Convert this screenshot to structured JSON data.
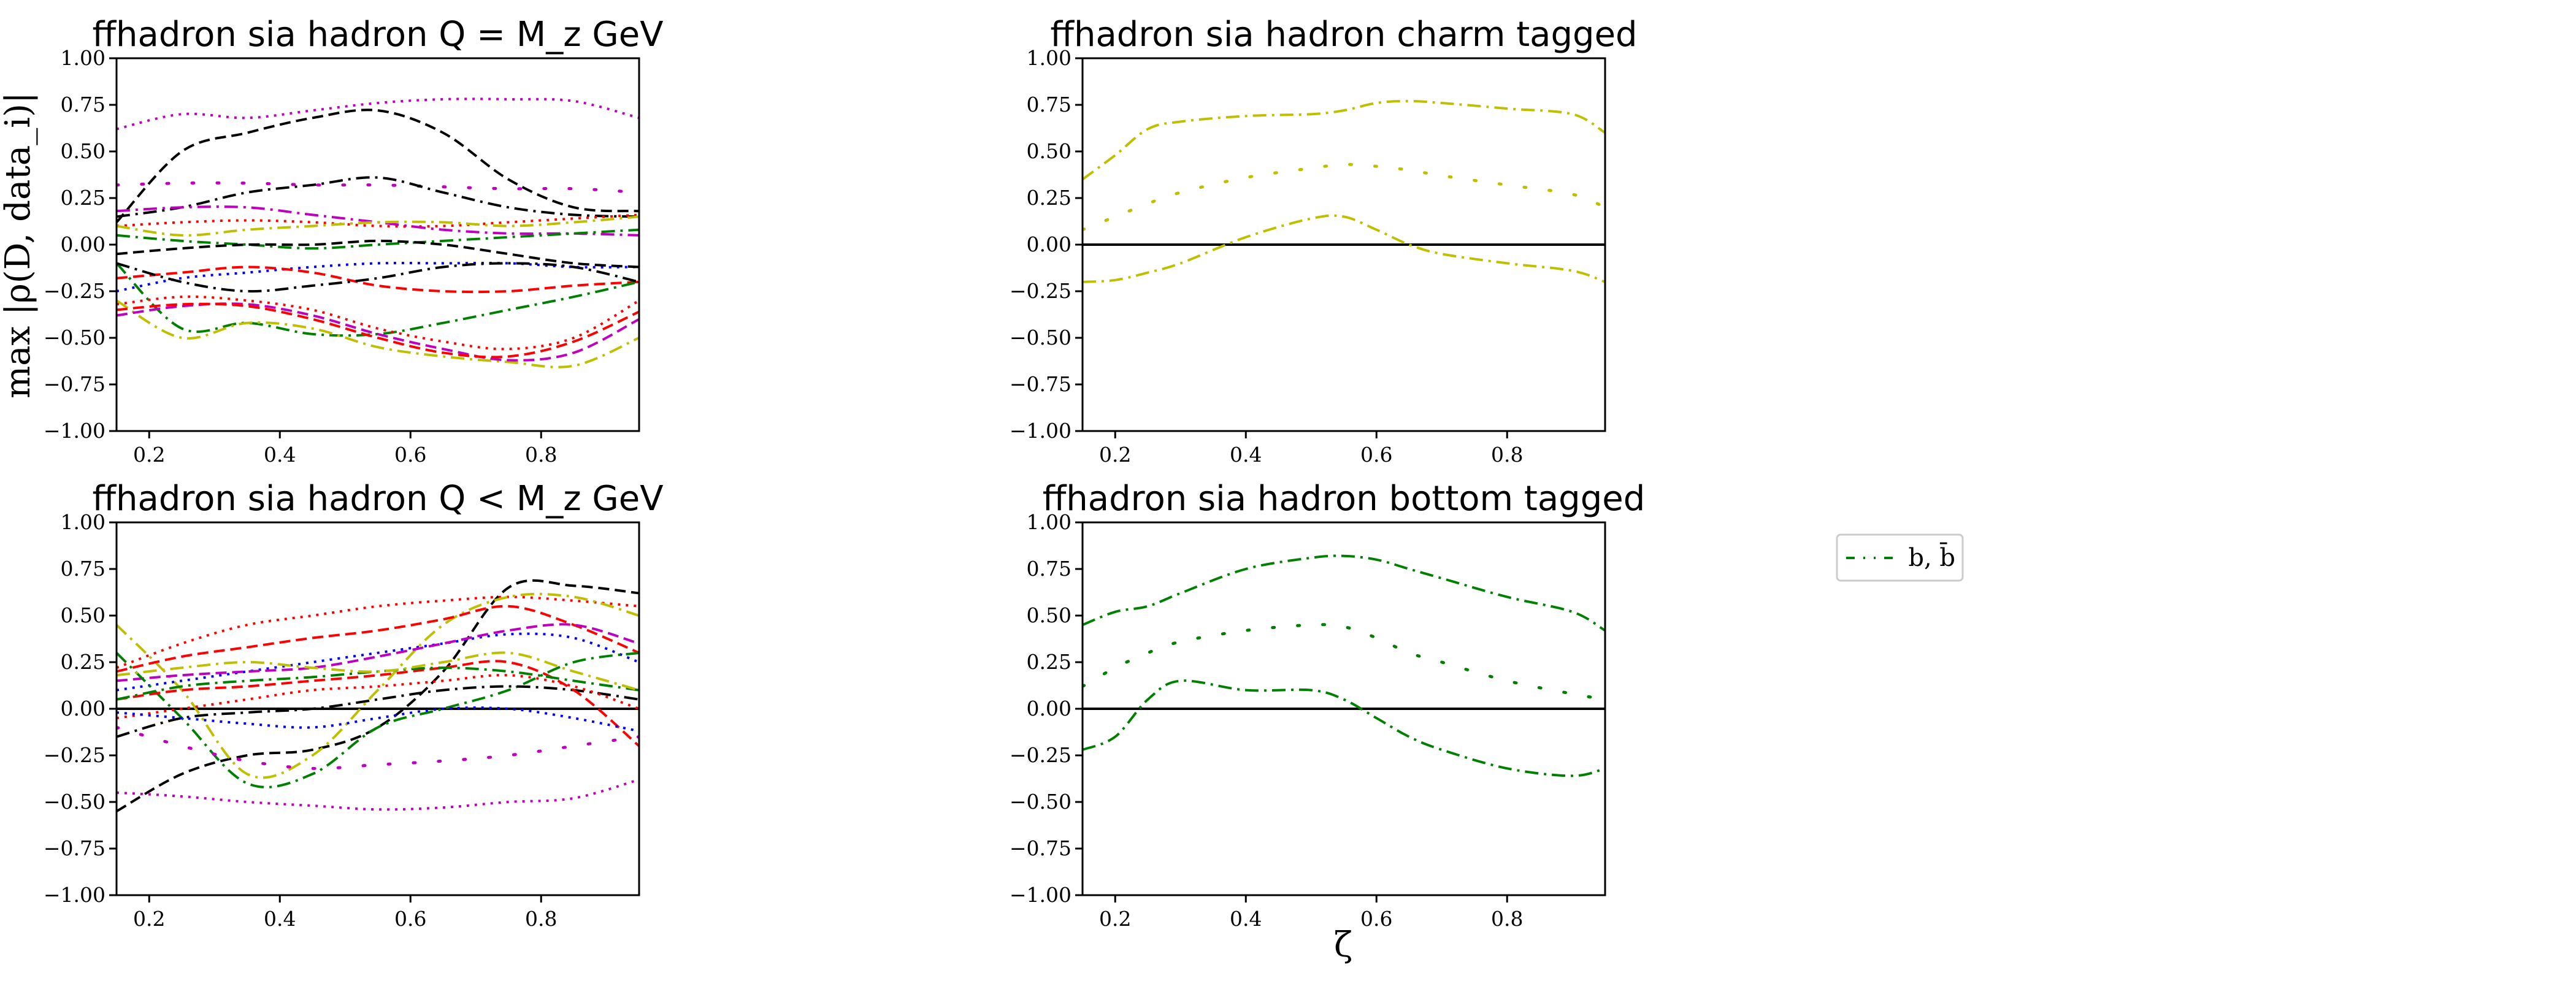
{
  "figure": {
    "ylabel": "max |ρ(D, data_i)|",
    "xlabel": "ζ",
    "legend": {
      "label": "b, b̄",
      "color": "#008000",
      "linestyle": "dashdot-sparse",
      "placement": "right-middle"
    }
  },
  "chart_data": [
    {
      "type": "line",
      "title": "ffhadron sia hadron Q = M_z GeV",
      "xlim": [
        0.15,
        0.95
      ],
      "ylim": [
        -1.0,
        1.0
      ],
      "xticks": [
        "0.2",
        "0.4",
        "0.6",
        "0.8"
      ],
      "yticks": [
        "−1.00",
        "−0.75",
        "−0.50",
        "−0.25",
        "0.00",
        "0.25",
        "0.50",
        "0.75",
        "1.00"
      ],
      "zero_line": false,
      "x": [
        0.15,
        0.25,
        0.35,
        0.45,
        0.55,
        0.65,
        0.75,
        0.85,
        0.95
      ],
      "series": [
        {
          "color": "#000000",
          "dash": "dashed",
          "values": [
            0.12,
            0.5,
            0.6,
            0.68,
            0.72,
            0.6,
            0.35,
            0.2,
            0.18
          ]
        },
        {
          "color": "#bf00bf",
          "dash": "dotted",
          "values": [
            0.62,
            0.7,
            0.68,
            0.72,
            0.76,
            0.78,
            0.78,
            0.77,
            0.68
          ]
        },
        {
          "color": "#bf00bf",
          "dash": "sparse",
          "values": [
            0.32,
            0.33,
            0.33,
            0.32,
            0.32,
            0.31,
            0.3,
            0.3,
            0.28
          ]
        },
        {
          "color": "#000000",
          "dash": "dashdot",
          "values": [
            0.15,
            0.2,
            0.28,
            0.32,
            0.36,
            0.28,
            0.2,
            0.16,
            0.15
          ]
        },
        {
          "color": "#ff0000",
          "dash": "dotted",
          "values": [
            0.1,
            0.12,
            0.13,
            0.12,
            0.1,
            0.1,
            0.12,
            0.14,
            0.16
          ]
        },
        {
          "color": "#bf00bf",
          "dash": "dashdot",
          "values": [
            0.18,
            0.2,
            0.2,
            0.16,
            0.12,
            0.08,
            0.06,
            0.06,
            0.05
          ]
        },
        {
          "color": "#bfbf00",
          "dash": "dashdot",
          "values": [
            0.1,
            0.05,
            0.08,
            0.1,
            0.12,
            0.12,
            0.1,
            0.12,
            0.15
          ]
        },
        {
          "color": "#008000",
          "dash": "dashdot",
          "values": [
            0.05,
            0.02,
            0.0,
            -0.02,
            0.0,
            0.02,
            0.04,
            0.06,
            0.08
          ]
        },
        {
          "color": "#0000ff",
          "dash": "dotted",
          "values": [
            -0.25,
            -0.18,
            -0.15,
            -0.12,
            -0.1,
            -0.1,
            -0.1,
            -0.12,
            -0.12
          ]
        },
        {
          "color": "#ff0000",
          "dash": "dashed",
          "values": [
            -0.18,
            -0.15,
            -0.12,
            -0.15,
            -0.22,
            -0.25,
            -0.25,
            -0.22,
            -0.2
          ]
        },
        {
          "color": "#000000",
          "dash": "dashed",
          "values": [
            -0.05,
            -0.02,
            0.0,
            0.0,
            0.02,
            0.0,
            -0.05,
            -0.1,
            -0.12
          ]
        },
        {
          "color": "#008000",
          "dash": "dashdot",
          "values": [
            -0.1,
            -0.45,
            -0.42,
            -0.48,
            -0.48,
            -0.42,
            -0.35,
            -0.28,
            -0.2
          ]
        },
        {
          "color": "#bfbf00",
          "dash": "dashdot",
          "values": [
            -0.3,
            -0.5,
            -0.42,
            -0.45,
            -0.55,
            -0.6,
            -0.63,
            -0.65,
            -0.5
          ]
        },
        {
          "color": "#bf00bf",
          "dash": "dashed",
          "values": [
            -0.38,
            -0.33,
            -0.32,
            -0.38,
            -0.48,
            -0.56,
            -0.62,
            -0.58,
            -0.4
          ]
        },
        {
          "color": "#ff0000",
          "dash": "dashed",
          "values": [
            -0.35,
            -0.32,
            -0.33,
            -0.4,
            -0.5,
            -0.58,
            -0.6,
            -0.52,
            -0.36
          ]
        },
        {
          "color": "#ff0000",
          "dash": "dotted",
          "values": [
            -0.32,
            -0.28,
            -0.3,
            -0.35,
            -0.45,
            -0.52,
            -0.56,
            -0.5,
            -0.3
          ]
        },
        {
          "color": "#000000",
          "dash": "dashdot",
          "values": [
            -0.1,
            -0.2,
            -0.25,
            -0.22,
            -0.18,
            -0.12,
            -0.1,
            -0.12,
            -0.2
          ]
        }
      ]
    },
    {
      "type": "line",
      "title": "ffhadron sia hadron charm tagged",
      "xlim": [
        0.15,
        0.95
      ],
      "ylim": [
        -1.0,
        1.0
      ],
      "xticks": [
        "0.2",
        "0.4",
        "0.6",
        "0.8"
      ],
      "yticks": [
        "−1.00",
        "−0.75",
        "−0.50",
        "−0.25",
        "0.00",
        "0.25",
        "0.50",
        "0.75",
        "1.00"
      ],
      "zero_line": true,
      "x": [
        0.15,
        0.2,
        0.25,
        0.3,
        0.4,
        0.5,
        0.55,
        0.6,
        0.65,
        0.7,
        0.8,
        0.9,
        0.95
      ],
      "series": [
        {
          "color": "#bfbf00",
          "dash": "dashdot",
          "values": [
            0.35,
            0.48,
            0.62,
            0.66,
            0.69,
            0.7,
            0.72,
            0.76,
            0.77,
            0.76,
            0.73,
            0.7,
            0.6
          ]
        },
        {
          "color": "#bfbf00",
          "dash": "sparse",
          "values": [
            0.08,
            0.15,
            0.22,
            0.28,
            0.36,
            0.41,
            0.43,
            0.42,
            0.4,
            0.37,
            0.32,
            0.27,
            0.2
          ]
        },
        {
          "color": "#bfbf00",
          "dash": "dashdot",
          "values": [
            -0.2,
            -0.19,
            -0.15,
            -0.1,
            0.04,
            0.14,
            0.15,
            0.08,
            0.0,
            -0.05,
            -0.1,
            -0.14,
            -0.2
          ]
        }
      ]
    },
    {
      "type": "line",
      "title": "ffhadron sia hadron Q < M_z GeV",
      "xlim": [
        0.15,
        0.95
      ],
      "ylim": [
        -1.0,
        1.0
      ],
      "xticks": [
        "0.2",
        "0.4",
        "0.6",
        "0.8"
      ],
      "yticks": [
        "−1.00",
        "−0.75",
        "−0.50",
        "−0.25",
        "0.00",
        "0.25",
        "0.50",
        "0.75",
        "1.00"
      ],
      "zero_line": true,
      "x": [
        0.15,
        0.25,
        0.35,
        0.45,
        0.55,
        0.65,
        0.75,
        0.85,
        0.95
      ],
      "series": [
        {
          "color": "#000000",
          "dash": "dashed",
          "values": [
            -0.55,
            -0.35,
            -0.25,
            -0.22,
            -0.1,
            0.2,
            0.65,
            0.66,
            0.62
          ]
        },
        {
          "color": "#ff0000",
          "dash": "dotted",
          "values": [
            0.22,
            0.35,
            0.45,
            0.5,
            0.55,
            0.58,
            0.6,
            0.58,
            0.55
          ]
        },
        {
          "color": "#bfbf00",
          "dash": "dashdot",
          "values": [
            0.45,
            0.1,
            -0.35,
            -0.25,
            0.1,
            0.45,
            0.6,
            0.6,
            0.5
          ]
        },
        {
          "color": "#ff0000",
          "dash": "dashed",
          "values": [
            0.2,
            0.28,
            0.33,
            0.38,
            0.42,
            0.48,
            0.55,
            0.45,
            0.3
          ]
        },
        {
          "color": "#0000ff",
          "dash": "dotted",
          "values": [
            0.1,
            0.15,
            0.2,
            0.25,
            0.3,
            0.35,
            0.4,
            0.38,
            0.25
          ]
        },
        {
          "color": "#bf00bf",
          "dash": "dashed",
          "values": [
            0.15,
            0.18,
            0.2,
            0.22,
            0.28,
            0.35,
            0.42,
            0.45,
            0.35
          ]
        },
        {
          "color": "#008000",
          "dash": "dashdot",
          "values": [
            0.3,
            -0.05,
            -0.4,
            -0.35,
            -0.1,
            0.0,
            0.1,
            0.25,
            0.3
          ]
        },
        {
          "color": "#bf00bf",
          "dash": "dotted",
          "values": [
            -0.45,
            -0.47,
            -0.5,
            -0.52,
            -0.54,
            -0.53,
            -0.5,
            -0.48,
            -0.38
          ]
        },
        {
          "color": "#bf00bf",
          "dash": "sparse",
          "values": [
            -0.1,
            -0.2,
            -0.28,
            -0.32,
            -0.3,
            -0.28,
            -0.25,
            -0.2,
            -0.15
          ]
        },
        {
          "color": "#000000",
          "dash": "dashdot",
          "values": [
            -0.15,
            -0.05,
            -0.02,
            0.0,
            0.05,
            0.1,
            0.12,
            0.1,
            0.05
          ]
        },
        {
          "color": "#ff0000",
          "dash": "dashed",
          "values": [
            0.05,
            0.1,
            0.12,
            0.15,
            0.18,
            0.22,
            0.25,
            0.1,
            -0.2
          ]
        },
        {
          "color": "#008000",
          "dash": "dashdot",
          "values": [
            0.05,
            0.12,
            0.15,
            0.17,
            0.2,
            0.22,
            0.2,
            0.15,
            0.1
          ]
        },
        {
          "color": "#ff0000",
          "dash": "dotted",
          "values": [
            -0.05,
            0.0,
            0.05,
            0.1,
            0.12,
            0.15,
            0.18,
            0.12,
            0.0
          ]
        },
        {
          "color": "#bfbf00",
          "dash": "dashdot",
          "values": [
            0.18,
            0.22,
            0.25,
            0.22,
            0.2,
            0.25,
            0.3,
            0.2,
            0.1
          ]
        },
        {
          "color": "#0000ff",
          "dash": "dotted",
          "values": [
            -0.02,
            -0.05,
            -0.08,
            -0.1,
            -0.05,
            0.0,
            0.0,
            -0.05,
            -0.12
          ]
        }
      ]
    },
    {
      "type": "line",
      "title": "ffhadron sia hadron bottom tagged",
      "xlim": [
        0.15,
        0.95
      ],
      "ylim": [
        -1.0,
        1.0
      ],
      "xticks": [
        "0.2",
        "0.4",
        "0.6",
        "0.8"
      ],
      "yticks": [
        "−1.00",
        "−0.75",
        "−0.50",
        "−0.25",
        "0.00",
        "0.25",
        "0.50",
        "0.75",
        "1.00"
      ],
      "zero_line": true,
      "x": [
        0.15,
        0.2,
        0.25,
        0.3,
        0.4,
        0.5,
        0.55,
        0.6,
        0.65,
        0.7,
        0.8,
        0.9,
        0.95
      ],
      "series": [
        {
          "color": "#008000",
          "dash": "dashdot",
          "values": [
            0.45,
            0.52,
            0.55,
            0.62,
            0.75,
            0.81,
            0.82,
            0.8,
            0.75,
            0.7,
            0.6,
            0.52,
            0.42
          ]
        },
        {
          "color": "#008000",
          "dash": "sparse",
          "values": [
            0.12,
            0.22,
            0.3,
            0.36,
            0.42,
            0.45,
            0.44,
            0.38,
            0.3,
            0.25,
            0.15,
            0.08,
            0.05
          ]
        },
        {
          "color": "#008000",
          "dash": "dashdot",
          "values": [
            -0.22,
            -0.15,
            0.05,
            0.15,
            0.1,
            0.1,
            0.05,
            -0.05,
            -0.15,
            -0.22,
            -0.32,
            -0.36,
            -0.32
          ]
        }
      ]
    }
  ]
}
